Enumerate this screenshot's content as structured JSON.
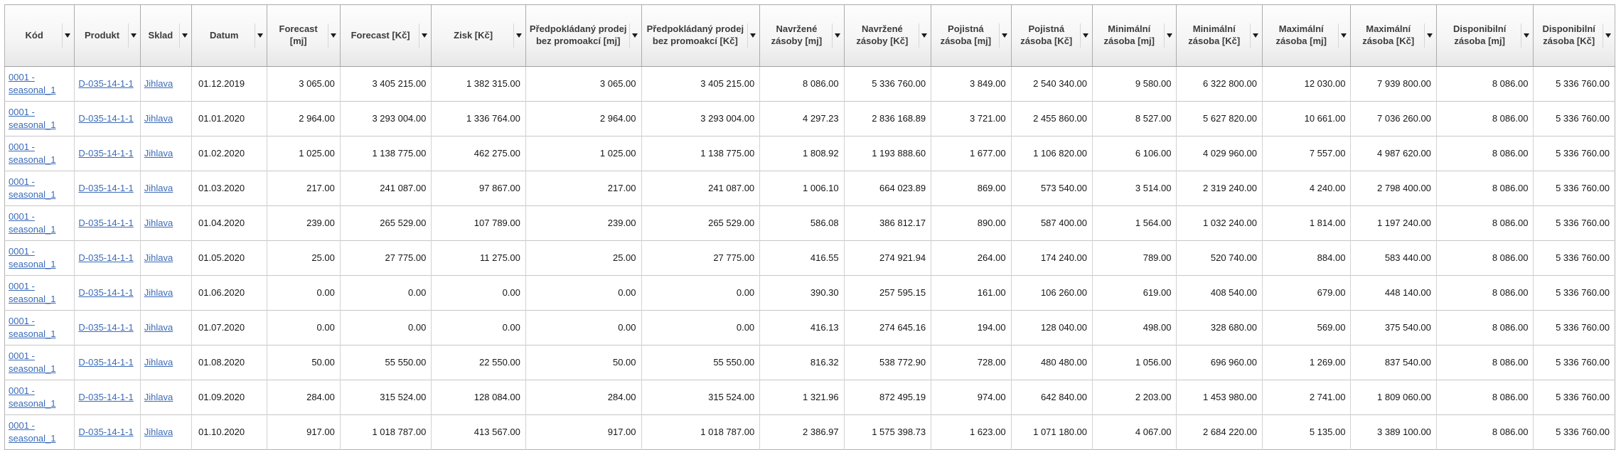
{
  "app": {
    "description": "Inventory forecast planning data grid",
    "link_color": "#3b6bb7",
    "filter_icon": "chevron-down-filter"
  },
  "table": {
    "columns": [
      {
        "id": "kod",
        "label": "Kód",
        "type": "link"
      },
      {
        "id": "produkt",
        "label": "Produkt",
        "type": "link"
      },
      {
        "id": "sklad",
        "label": "Sklad",
        "type": "link"
      },
      {
        "id": "datum",
        "label": "Datum",
        "type": "text"
      },
      {
        "id": "forecast-mj",
        "label": "Forecast [mj]",
        "type": "number"
      },
      {
        "id": "forecast-kc",
        "label": "Forecast [Kč]",
        "type": "number"
      },
      {
        "id": "zisk-kc",
        "label": "Zisk [Kč]",
        "type": "number"
      },
      {
        "id": "predpokladany-prodej-mj",
        "label": "Předpokládaný prodej bez promoakcí [mj]",
        "type": "number"
      },
      {
        "id": "predpokladany-prodej-kc",
        "label": "Předpokládaný prodej bez promoakcí [Kč]",
        "type": "number"
      },
      {
        "id": "navrzene-zasoby-mj",
        "label": "Navržené zásoby [mj]",
        "type": "number"
      },
      {
        "id": "navrzene-zasoby-kc",
        "label": "Navržené zásoby [Kč]",
        "type": "number"
      },
      {
        "id": "pojistna-zasoba-mj",
        "label": "Pojistná zásoba [mj]",
        "type": "number"
      },
      {
        "id": "pojistna-zasoba-kc",
        "label": "Pojistná zásoba [Kč]",
        "type": "number"
      },
      {
        "id": "minimalni-zasoba-mj",
        "label": "Minimální zásoba [mj]",
        "type": "number"
      },
      {
        "id": "minimalni-zasoba-kc",
        "label": "Minimální zásoba [Kč]",
        "type": "number"
      },
      {
        "id": "maximalni-zasoba-mj",
        "label": "Maximální zásoba [mj]",
        "type": "number"
      },
      {
        "id": "maximalni-zasoba-kc",
        "label": "Maximální zásoba [Kč]",
        "type": "number"
      },
      {
        "id": "disponibilni-zasoba-mj",
        "label": "Disponibilní zásoba [mj]",
        "type": "number"
      },
      {
        "id": "disponibilni-zasoba-kc",
        "label": "Disponibilní zásoba [Kč]",
        "type": "number"
      }
    ],
    "rows": [
      {
        "cells": [
          "0001 - seasonal_1",
          "D-035-14-1-1",
          "Jihlava",
          "01.12.2019",
          "3 065.00",
          "3 405 215.00",
          "1 382 315.00",
          "3 065.00",
          "3 405 215.00",
          "8 086.00",
          "5 336 760.00",
          "3 849.00",
          "2 540 340.00",
          "9 580.00",
          "6 322 800.00",
          "12 030.00",
          "7 939 800.00",
          "8 086.00",
          "5 336 760.00"
        ]
      },
      {
        "cells": [
          "0001 - seasonal_1",
          "D-035-14-1-1",
          "Jihlava",
          "01.01.2020",
          "2 964.00",
          "3 293 004.00",
          "1 336 764.00",
          "2 964.00",
          "3 293 004.00",
          "4 297.23",
          "2 836 168.89",
          "3 721.00",
          "2 455 860.00",
          "8 527.00",
          "5 627 820.00",
          "10 661.00",
          "7 036 260.00",
          "8 086.00",
          "5 336 760.00"
        ]
      },
      {
        "cells": [
          "0001 - seasonal_1",
          "D-035-14-1-1",
          "Jihlava",
          "01.02.2020",
          "1 025.00",
          "1 138 775.00",
          "462 275.00",
          "1 025.00",
          "1 138 775.00",
          "1 808.92",
          "1 193 888.60",
          "1 677.00",
          "1 106 820.00",
          "6 106.00",
          "4 029 960.00",
          "7 557.00",
          "4 987 620.00",
          "8 086.00",
          "5 336 760.00"
        ]
      },
      {
        "cells": [
          "0001 - seasonal_1",
          "D-035-14-1-1",
          "Jihlava",
          "01.03.2020",
          "217.00",
          "241 087.00",
          "97 867.00",
          "217.00",
          "241 087.00",
          "1 006.10",
          "664 023.89",
          "869.00",
          "573 540.00",
          "3 514.00",
          "2 319 240.00",
          "4 240.00",
          "2 798 400.00",
          "8 086.00",
          "5 336 760.00"
        ]
      },
      {
        "cells": [
          "0001 - seasonal_1",
          "D-035-14-1-1",
          "Jihlava",
          "01.04.2020",
          "239.00",
          "265 529.00",
          "107 789.00",
          "239.00",
          "265 529.00",
          "586.08",
          "386 812.17",
          "890.00",
          "587 400.00",
          "1 564.00",
          "1 032 240.00",
          "1 814.00",
          "1 197 240.00",
          "8 086.00",
          "5 336 760.00"
        ]
      },
      {
        "cells": [
          "0001 - seasonal_1",
          "D-035-14-1-1",
          "Jihlava",
          "01.05.2020",
          "25.00",
          "27 775.00",
          "11 275.00",
          "25.00",
          "27 775.00",
          "416.55",
          "274 921.94",
          "264.00",
          "174 240.00",
          "789.00",
          "520 740.00",
          "884.00",
          "583 440.00",
          "8 086.00",
          "5 336 760.00"
        ]
      },
      {
        "cells": [
          "0001 - seasonal_1",
          "D-035-14-1-1",
          "Jihlava",
          "01.06.2020",
          "0.00",
          "0.00",
          "0.00",
          "0.00",
          "0.00",
          "390.30",
          "257 595.15",
          "161.00",
          "106 260.00",
          "619.00",
          "408 540.00",
          "679.00",
          "448 140.00",
          "8 086.00",
          "5 336 760.00"
        ]
      },
      {
        "cells": [
          "0001 - seasonal_1",
          "D-035-14-1-1",
          "Jihlava",
          "01.07.2020",
          "0.00",
          "0.00",
          "0.00",
          "0.00",
          "0.00",
          "416.13",
          "274 645.16",
          "194.00",
          "128 040.00",
          "498.00",
          "328 680.00",
          "569.00",
          "375 540.00",
          "8 086.00",
          "5 336 760.00"
        ]
      },
      {
        "cells": [
          "0001 - seasonal_1",
          "D-035-14-1-1",
          "Jihlava",
          "01.08.2020",
          "50.00",
          "55 550.00",
          "22 550.00",
          "50.00",
          "55 550.00",
          "816.32",
          "538 772.90",
          "728.00",
          "480 480.00",
          "1 056.00",
          "696 960.00",
          "1 269.00",
          "837 540.00",
          "8 086.00",
          "5 336 760.00"
        ]
      },
      {
        "cells": [
          "0001 - seasonal_1",
          "D-035-14-1-1",
          "Jihlava",
          "01.09.2020",
          "284.00",
          "315 524.00",
          "128 084.00",
          "284.00",
          "315 524.00",
          "1 321.96",
          "872 495.19",
          "974.00",
          "642 840.00",
          "2 203.00",
          "1 453 980.00",
          "2 741.00",
          "1 809 060.00",
          "8 086.00",
          "5 336 760.00"
        ]
      },
      {
        "cells": [
          "0001 - seasonal_1",
          "D-035-14-1-1",
          "Jihlava",
          "01.10.2020",
          "917.00",
          "1 018 787.00",
          "413 567.00",
          "917.00",
          "1 018 787.00",
          "2 386.97",
          "1 575 398.73",
          "1 623.00",
          "1 071 180.00",
          "4 067.00",
          "2 684 220.00",
          "5 135.00",
          "3 389 100.00",
          "8 086.00",
          "5 336 760.00"
        ]
      }
    ]
  }
}
